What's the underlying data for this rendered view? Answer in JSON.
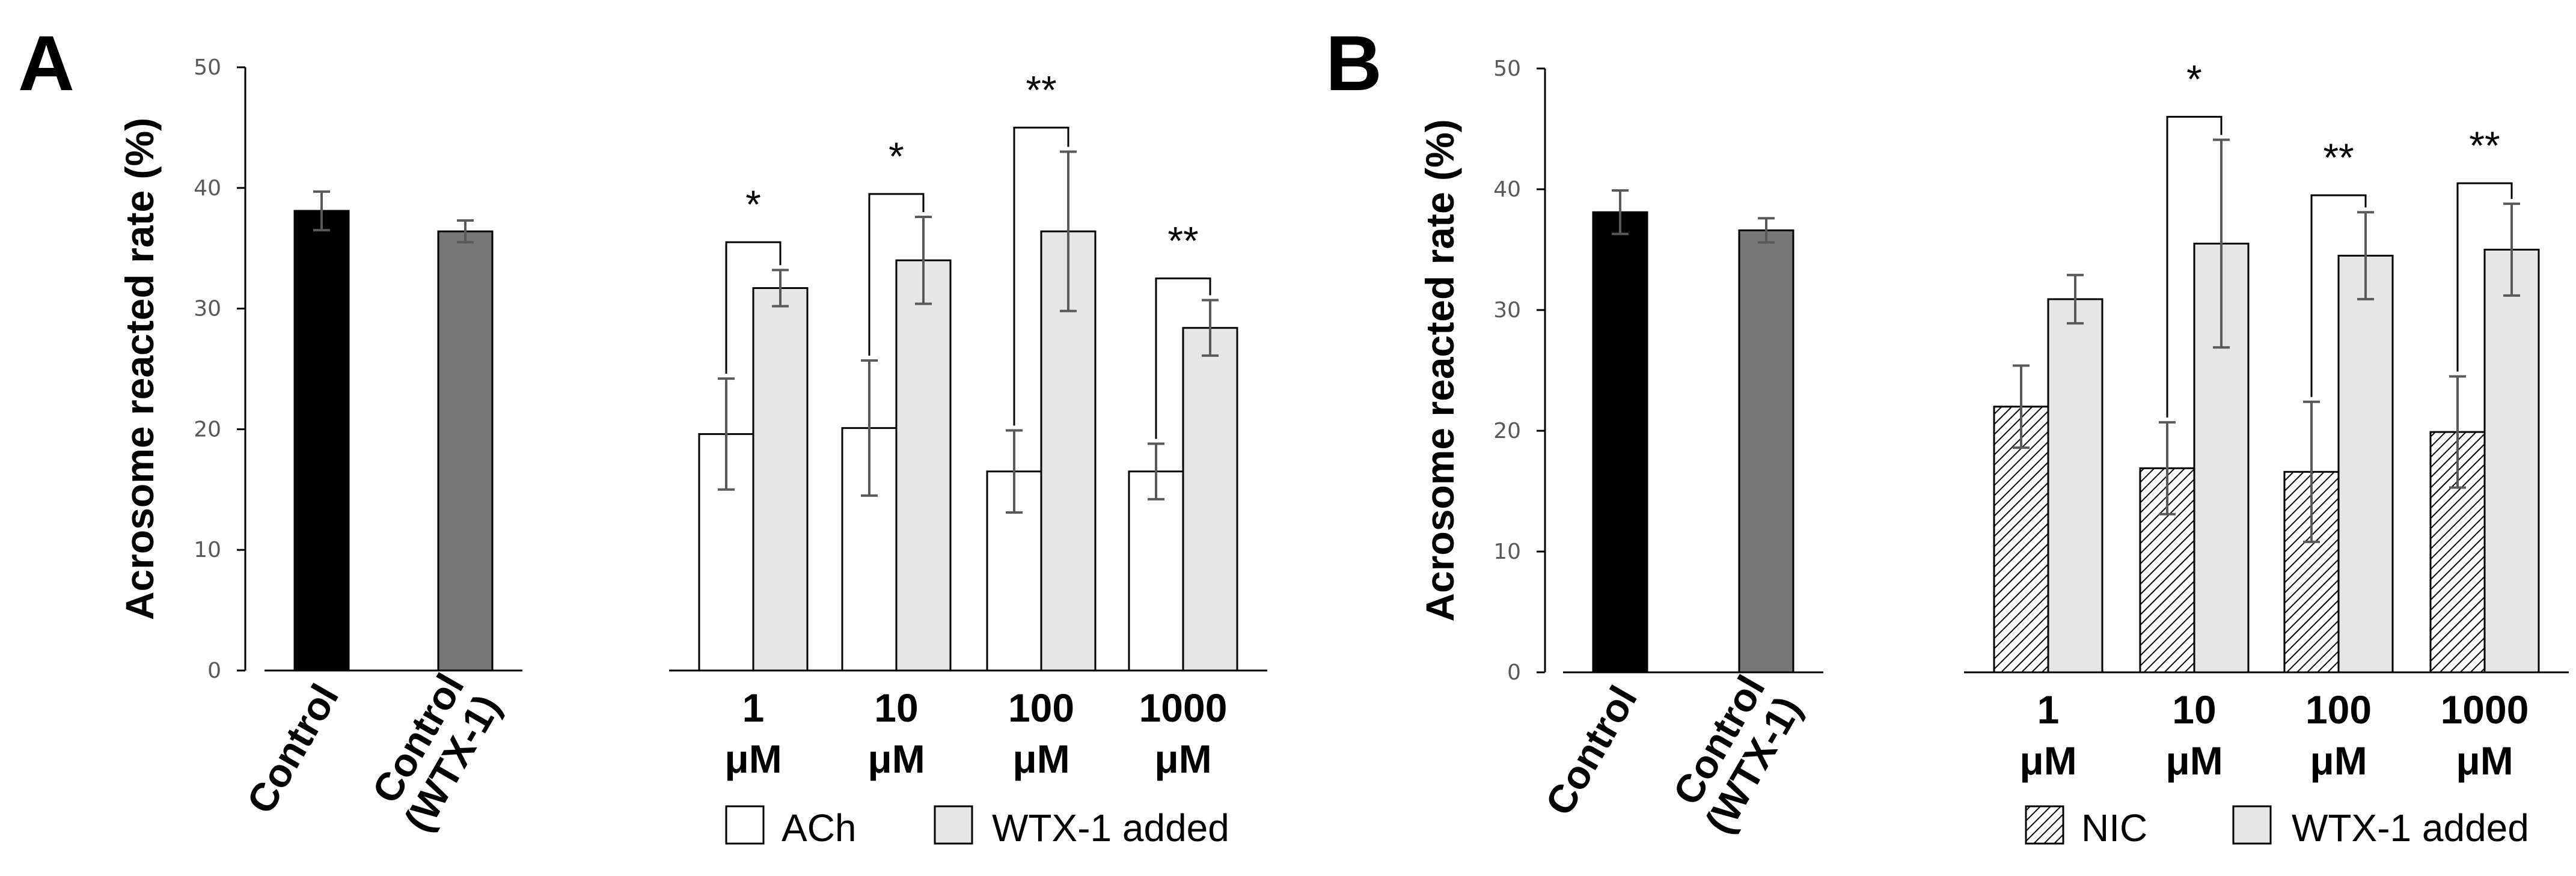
{
  "colors": {
    "control": "#000000",
    "control_wtx": "#777777",
    "agonist": "#ffffff",
    "wtx_added": "#e6e6e6",
    "error_bar": "#595959",
    "axis": "#000000"
  },
  "chart_data": [
    {
      "panel": "A",
      "type": "bar",
      "ylabel": "Acrosome reacted rate (%)",
      "ylim": [
        0,
        50
      ],
      "yticks": [
        "0",
        "10",
        "20",
        "30",
        "40",
        "50"
      ],
      "controls": [
        {
          "label": [
            "Control"
          ],
          "value": 38.1,
          "error": 1.6,
          "color_key": "control"
        },
        {
          "label": [
            "Control",
            "(WTX-1)"
          ],
          "value": 36.4,
          "error": 0.9,
          "color_key": "control_wtx"
        }
      ],
      "groups": [
        {
          "label": [
            "1",
            "μM"
          ],
          "agonist": 19.6,
          "agonist_err": 4.6,
          "wtx": 31.7,
          "wtx_err": 1.5,
          "sig": "*",
          "bracket_y": 35.5
        },
        {
          "label": [
            "10",
            "μM"
          ],
          "agonist": 20.1,
          "agonist_err": 5.6,
          "wtx": 34.0,
          "wtx_err": 3.6,
          "sig": "*",
          "bracket_y": 39.5
        },
        {
          "label": [
            "100",
            "μM"
          ],
          "agonist": 16.5,
          "agonist_err": 3.4,
          "wtx": 36.4,
          "wtx_err": 6.6,
          "sig": "**",
          "bracket_y": 45.0
        },
        {
          "label": [
            "1000",
            "μM"
          ],
          "agonist": 16.5,
          "agonist_err": 2.3,
          "wtx": 28.4,
          "wtx_err": 2.3,
          "sig": "**",
          "bracket_y": 32.5
        }
      ],
      "legend": [
        "ACh",
        "WTX-1 added"
      ],
      "agonist_pattern": "none"
    },
    {
      "panel": "B",
      "type": "bar",
      "ylabel": "Acrosome reacted rate (%)",
      "ylim": [
        0,
        50
      ],
      "yticks": [
        "0",
        "10",
        "20",
        "30",
        "40",
        "50"
      ],
      "controls": [
        {
          "label": [
            "Control"
          ],
          "value": 38.1,
          "error": 1.8,
          "color_key": "control"
        },
        {
          "label": [
            "Control",
            "(WTX-1)"
          ],
          "value": 36.6,
          "error": 1.0,
          "color_key": "control_wtx"
        }
      ],
      "groups": [
        {
          "label": [
            "1",
            "μM"
          ],
          "agonist": 22.0,
          "agonist_err": 3.4,
          "wtx": 30.9,
          "wtx_err": 2.0,
          "sig": "",
          "bracket_y": 0
        },
        {
          "label": [
            "10",
            "μM"
          ],
          "agonist": 16.9,
          "agonist_err": 3.8,
          "wtx": 35.5,
          "wtx_err": 8.6,
          "sig": "*",
          "bracket_y": 46.0
        },
        {
          "label": [
            "100",
            "μM"
          ],
          "agonist": 16.6,
          "agonist_err": 5.8,
          "wtx": 34.5,
          "wtx_err": 3.6,
          "sig": "**",
          "bracket_y": 39.5
        },
        {
          "label": [
            "1000",
            "μM"
          ],
          "agonist": 19.9,
          "agonist_err": 4.6,
          "wtx": 35.0,
          "wtx_err": 3.8,
          "sig": "**",
          "bracket_y": 40.5
        }
      ],
      "legend": [
        "NIC",
        "WTX-1 added"
      ],
      "agonist_pattern": "hatch"
    }
  ]
}
